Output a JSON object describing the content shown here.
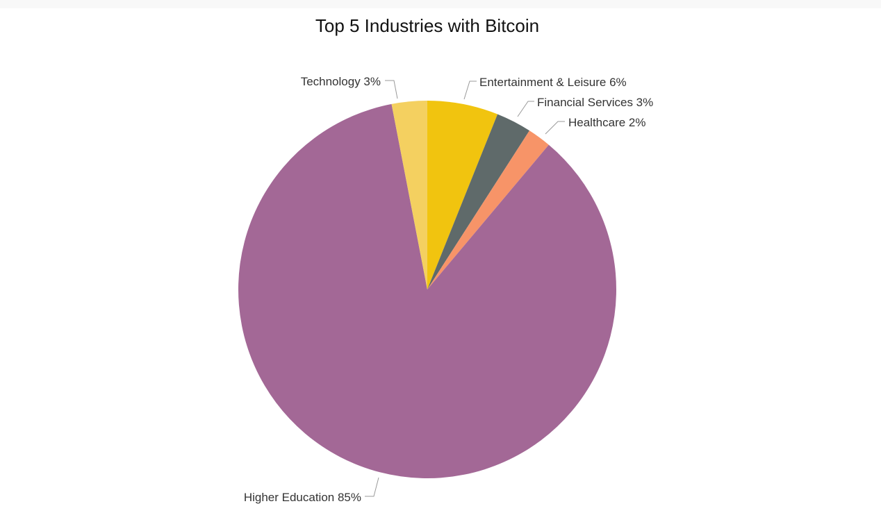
{
  "chart_data": {
    "type": "pie",
    "title": "Top 5 Industries with Bitcoin",
    "slices": [
      {
        "label": "Entertainment & Leisure",
        "value": 6,
        "display": "Entertainment & Leisure 6%",
        "color": "#f1c40f"
      },
      {
        "label": "Financial Services",
        "value": 3,
        "display": "Financial Services 3%",
        "color": "#5f6a6a"
      },
      {
        "label": "Healthcare",
        "value": 2,
        "display": "Healthcare 2%",
        "color": "#f79468"
      },
      {
        "label": "Higher Education",
        "value": 85,
        "display": "Higher Education 85%",
        "color": "#a36896"
      },
      {
        "label": "Technology",
        "value": 3,
        "display": "Technology 3%",
        "color": "#f4d060"
      }
    ]
  }
}
